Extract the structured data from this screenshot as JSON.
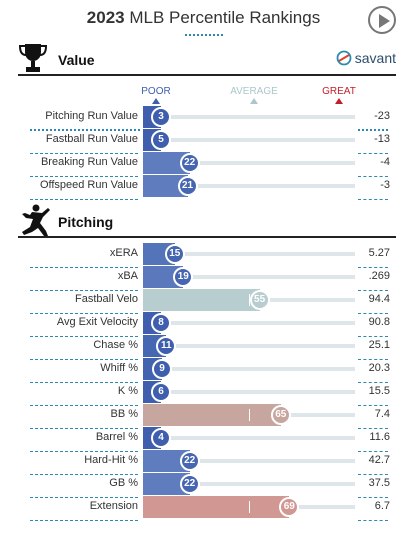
{
  "header": {
    "year": "2023",
    "title": " MLB Percentile Rankings"
  },
  "sections": {
    "value": {
      "title": "Value",
      "icon": "trophy-icon"
    },
    "pitching": {
      "title": "Pitching",
      "icon": "pitcher-icon"
    }
  },
  "brand": {
    "name": "savant",
    "icon": "savant-logo-icon"
  },
  "legend": {
    "poor": "POOR",
    "average": "AVERAGE",
    "great": "GREAT"
  },
  "colors": {
    "poor": "#4c6ab0",
    "average": "#aac7cb",
    "great": "#c21e2a",
    "percentile_65": "#c8a6a0",
    "percentile_69": "#d19893",
    "percentile_55": "#b7cdd0"
  },
  "value_rows": [
    {
      "name": "Pitching Run Value",
      "percentile": "3",
      "value": "-23",
      "pct": 3,
      "color": "#3f5fae"
    },
    {
      "name": "Fastball Run Value",
      "percentile": "5",
      "value": "-13",
      "pct": 5,
      "color": "#3f5fae"
    },
    {
      "name": "Breaking Run Value",
      "percentile": "22",
      "value": "-4",
      "pct": 22,
      "color": "#5f7cbf"
    },
    {
      "name": "Offspeed Run Value",
      "percentile": "21",
      "value": "-3",
      "pct": 21,
      "color": "#5f7cbf"
    }
  ],
  "pitching_rows": [
    {
      "name": "xERA",
      "percentile": "15",
      "value": "5.27",
      "pct": 15,
      "color": "#5374b8"
    },
    {
      "name": "xBA",
      "percentile": "19",
      "value": ".269",
      "pct": 19,
      "color": "#5a78bb"
    },
    {
      "name": "Fastball Velo",
      "percentile": "55",
      "value": "94.4",
      "pct": 55,
      "color": "#b7cdd0"
    },
    {
      "name": "Avg Exit Velocity",
      "percentile": "8",
      "value": "90.8",
      "pct": 8,
      "color": "#3f5fae"
    },
    {
      "name": "Chase %",
      "percentile": "11",
      "value": "25.1",
      "pct": 11,
      "color": "#4667b2"
    },
    {
      "name": "Whiff %",
      "percentile": "9",
      "value": "20.3",
      "pct": 9,
      "color": "#4264b0"
    },
    {
      "name": "K %",
      "percentile": "6",
      "value": "15.5",
      "pct": 6,
      "color": "#3f5fae"
    },
    {
      "name": "BB %",
      "percentile": "65",
      "value": "7.4",
      "pct": 65,
      "color": "#c8a6a0"
    },
    {
      "name": "Barrel %",
      "percentile": "4",
      "value": "11.6",
      "pct": 4,
      "color": "#3f5fae"
    },
    {
      "name": "Hard-Hit %",
      "percentile": "22",
      "value": "42.7",
      "pct": 22,
      "color": "#5f7cbf"
    },
    {
      "name": "GB %",
      "percentile": "22",
      "value": "37.5",
      "pct": 22,
      "color": "#5f7cbf"
    },
    {
      "name": "Extension",
      "percentile": "69",
      "value": "6.7",
      "pct": 69,
      "color": "#d19893"
    }
  ]
}
